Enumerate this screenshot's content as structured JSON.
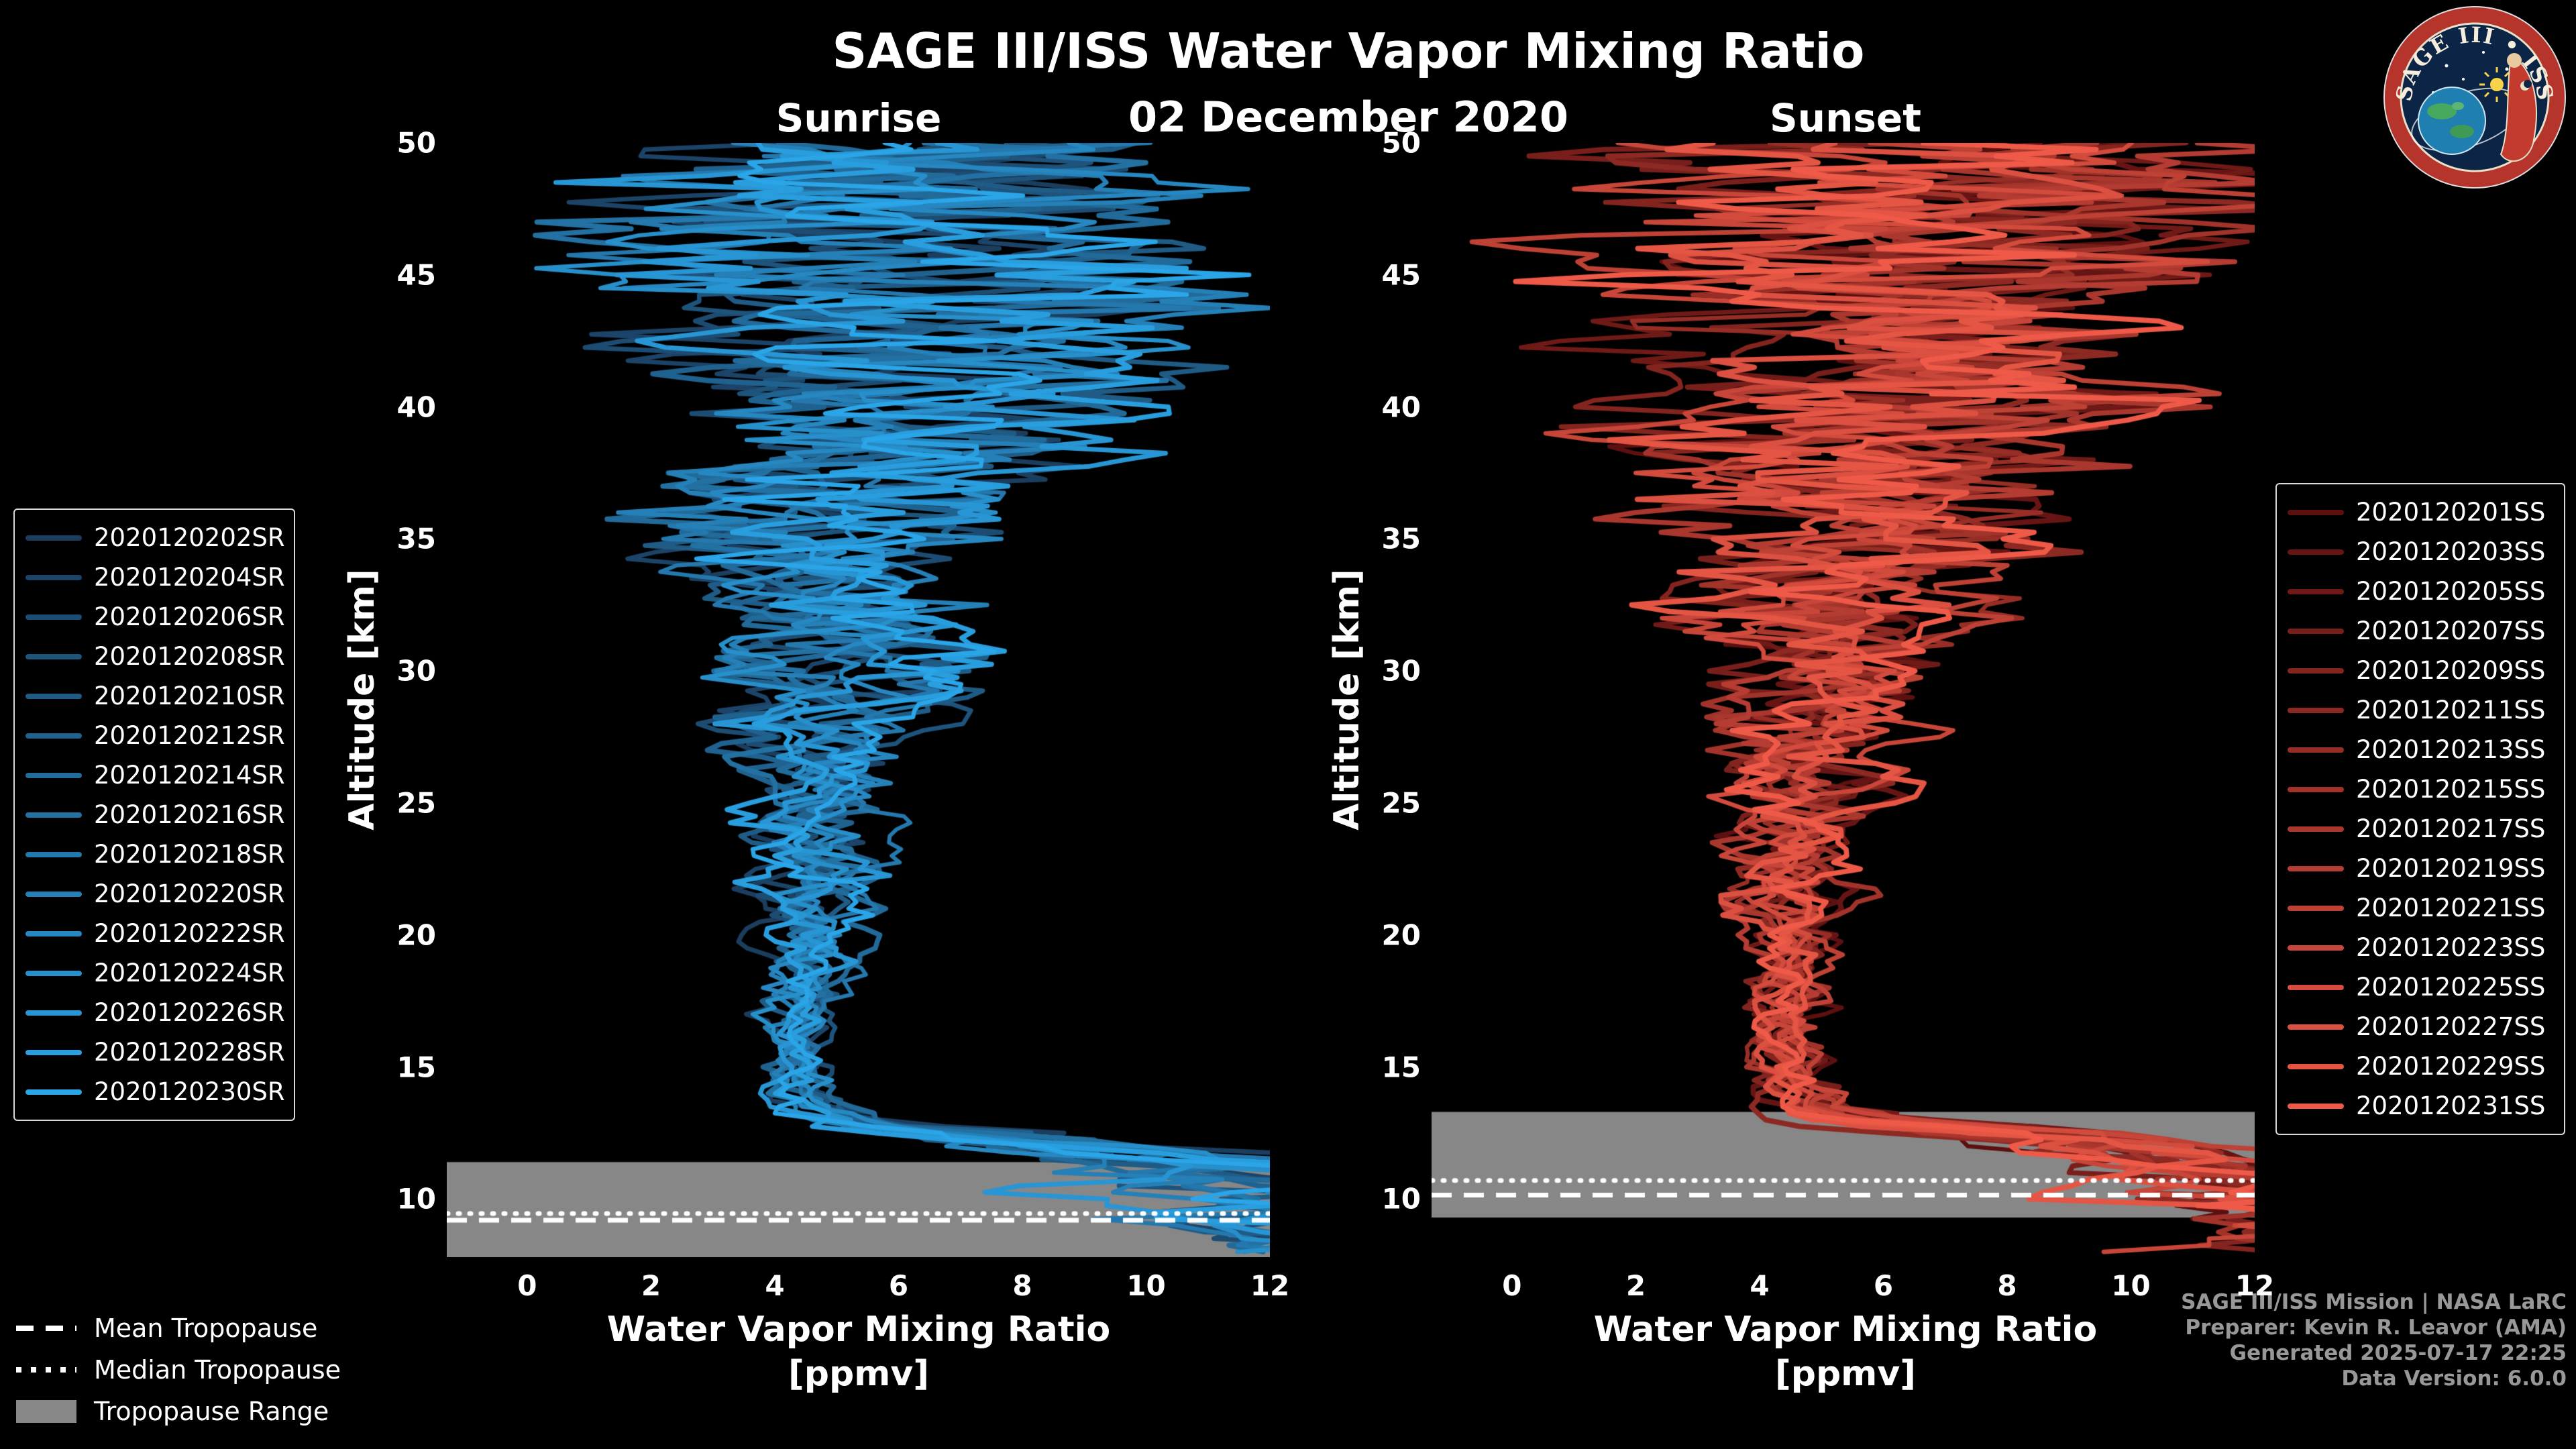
{
  "header": {
    "title": "SAGE III/ISS Water Vapor Mixing Ratio",
    "date": "02 December 2020",
    "left_panel_label": "Sunrise",
    "right_panel_label": "Sunset"
  },
  "axes": {
    "ylabel": "Altitude [km]",
    "xlabel": "Water Vapor Mixing Ratio",
    "xlabel_units": "[ppmv]"
  },
  "tropopause_legend": {
    "mean": "Mean Tropopause",
    "median": "Median Tropopause",
    "range": "Tropopause Range"
  },
  "footer": {
    "line1": "SAGE III/ISS Mission | NASA LaRC",
    "line2": "Preparer: Kevin R. Leavor (AMA)",
    "line3": "Generated 2025-07-17 22:25",
    "line4": "Data Version: 6.0.0"
  },
  "logo": {
    "text": "SAGE III • ISS"
  },
  "chart_data": [
    {
      "type": "line",
      "panel": "Sunrise",
      "xlabel": "Water Vapor Mixing Ratio [ppmv]",
      "ylabel": "Altitude [km]",
      "xlim": [
        -1.3,
        12
      ],
      "ylim": [
        7.8,
        50
      ],
      "xticks": [
        0,
        2,
        4,
        6,
        8,
        10,
        12
      ],
      "yticks": [
        10,
        15,
        20,
        25,
        30,
        35,
        40,
        45,
        50
      ],
      "series": [
        "2020120202SR",
        "2020120204SR",
        "2020120206SR",
        "2020120208SR",
        "2020120210SR",
        "2020120212SR",
        "2020120214SR",
        "2020120216SR",
        "2020120218SR",
        "2020120220SR",
        "2020120222SR",
        "2020120224SR",
        "2020120226SR",
        "2020120228SR",
        "2020120230SR"
      ],
      "color_start": "#1b3d5e",
      "color_end": "#2aa5e8",
      "band_color": "#878787",
      "tropopause_line_color": "#ffffff",
      "tropopause": {
        "mean_km": 9.2,
        "median_km": 9.45,
        "range_km": [
          7.8,
          11.4
        ]
      },
      "profile_model": {
        "altitude_km": [
          7.8,
          10,
          11.5,
          12.3,
          12.8,
          13.5,
          14,
          16,
          20,
          25,
          30,
          35,
          40,
          45,
          50
        ],
        "mean_ppmv": [
          13.0,
          12.0,
          10.5,
          7.5,
          5.4,
          4.5,
          4.3,
          4.35,
          4.55,
          4.75,
          5.0,
          5.3,
          5.6,
          5.9,
          6.0
        ],
        "spread_ppmv": [
          4.0,
          3.5,
          3.0,
          2.0,
          1.0,
          0.7,
          0.6,
          0.6,
          0.9,
          1.2,
          2.0,
          3.0,
          4.2,
          5.2,
          5.8
        ]
      },
      "seed": 12021202
    },
    {
      "type": "line",
      "panel": "Sunset",
      "xlabel": "Water Vapor Mixing Ratio [ppmv]",
      "ylabel": "Altitude [km]",
      "xlim": [
        -1.3,
        12
      ],
      "ylim": [
        7.8,
        50
      ],
      "xticks": [
        0,
        2,
        4,
        6,
        8,
        10,
        12
      ],
      "yticks": [
        10,
        15,
        20,
        25,
        30,
        35,
        40,
        45,
        50
      ],
      "series": [
        "2020120201SS",
        "2020120203SS",
        "2020120205SS",
        "2020120207SS",
        "2020120209SS",
        "2020120211SS",
        "2020120213SS",
        "2020120215SS",
        "2020120217SS",
        "2020120219SS",
        "2020120221SS",
        "2020120223SS",
        "2020120225SS",
        "2020120227SS",
        "2020120229SS",
        "2020120231SS"
      ],
      "color_start": "#5c1010",
      "color_end": "#ef5a48",
      "band_color": "#878787",
      "tropopause_line_color": "#ffffff",
      "tropopause": {
        "mean_km": 10.15,
        "median_km": 10.7,
        "range_km": [
          9.3,
          13.3
        ]
      },
      "profile_model": {
        "altitude_km": [
          7.8,
          9.5,
          11,
          12.5,
          13.0,
          13.6,
          14.5,
          16,
          20,
          25,
          30,
          35,
          40,
          45,
          50
        ],
        "mean_ppmv": [
          13.0,
          12.5,
          11.5,
          8.0,
          5.5,
          4.6,
          4.4,
          4.45,
          4.6,
          4.8,
          5.1,
          5.4,
          5.8,
          6.0,
          6.1
        ],
        "spread_ppmv": [
          4.0,
          3.6,
          3.1,
          2.2,
          1.1,
          0.8,
          0.65,
          0.6,
          0.9,
          1.3,
          2.1,
          3.1,
          4.3,
          5.3,
          5.8
        ]
      },
      "seed": 34567891
    }
  ]
}
